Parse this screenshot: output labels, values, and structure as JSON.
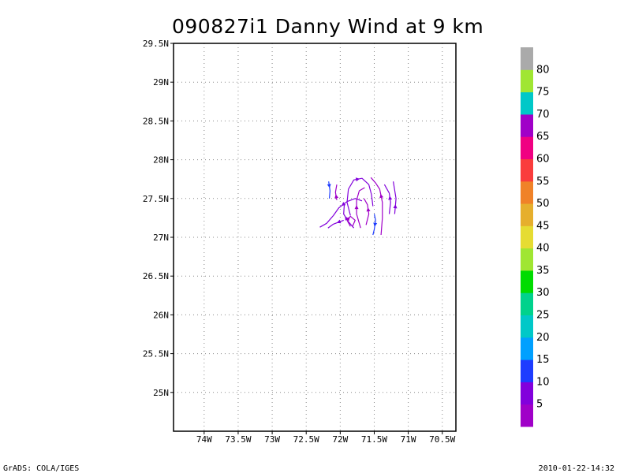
{
  "chart_data": {
    "type": "vector",
    "title": "090827i1 Danny Wind at 9 km",
    "xlim": [
      -74.45,
      -70.3
    ],
    "ylim": [
      24.5,
      29.5
    ],
    "x_ticks": [
      -74,
      -73.5,
      -73,
      -72.5,
      -72,
      -71.5,
      -71,
      -70.5
    ],
    "x_tick_labels": [
      "74W",
      "73.5W",
      "73W",
      "72.5W",
      "72W",
      "71.5W",
      "71W",
      "70.5W"
    ],
    "y_ticks": [
      25,
      25.5,
      26,
      26.5,
      27,
      27.5,
      28,
      28.5,
      29,
      29.5
    ],
    "y_tick_labels": [
      "25N",
      "25.5N",
      "26N",
      "26.5N",
      "27N",
      "27.5N",
      "28N",
      "28.5N",
      "29N",
      "29.5N"
    ],
    "grid": true,
    "legend": "right",
    "colorbar": {
      "labels": [
        "5",
        "10",
        "15",
        "20",
        "25",
        "30",
        "35",
        "40",
        "45",
        "50",
        "55",
        "60",
        "65",
        "70",
        "75",
        "80"
      ],
      "colors": [
        "#a000c8",
        "#8200dc",
        "#1e3cff",
        "#00a0ff",
        "#00c8c8",
        "#00d28c",
        "#00dc00",
        "#a0e632",
        "#e6dc32",
        "#e6af2d",
        "#f08228",
        "#fa3c3c",
        "#f00082",
        "#a000c8",
        "#00c8c8",
        "#a0e632",
        "#aaaaaa"
      ]
    },
    "streamlines": [
      {
        "color": "#1e3cff",
        "points": [
          [
            -72.17,
            27.72
          ],
          [
            -72.15,
            27.6
          ],
          [
            -72.16,
            27.5
          ]
        ]
      },
      {
        "color": "#8200dc",
        "points": [
          [
            -71.68,
            27.47
          ],
          [
            -71.78,
            27.5
          ],
          [
            -71.9,
            27.46
          ],
          [
            -72.02,
            27.38
          ],
          [
            -72.1,
            27.28
          ],
          [
            -72.2,
            27.18
          ],
          [
            -72.3,
            27.13
          ]
        ]
      },
      {
        "color": "#8200dc",
        "points": [
          [
            -71.95,
            27.22
          ],
          [
            -72.1,
            27.17
          ],
          [
            -72.18,
            27.12
          ]
        ]
      },
      {
        "color": "#8200dc",
        "points": [
          [
            -71.8,
            27.12
          ],
          [
            -71.88,
            27.2
          ],
          [
            -71.95,
            27.3
          ],
          [
            -71.94,
            27.42
          ]
        ]
      },
      {
        "color": "#a000c8",
        "points": [
          [
            -71.85,
            27.14
          ],
          [
            -71.9,
            27.22
          ],
          [
            -71.85,
            27.27
          ],
          [
            -71.78,
            27.22
          ],
          [
            -71.82,
            27.14
          ]
        ]
      },
      {
        "color": "#a000c8",
        "points": [
          [
            -72.05,
            27.48
          ],
          [
            -72.07,
            27.58
          ],
          [
            -72.05,
            27.68
          ]
        ]
      },
      {
        "color": "#8200dc",
        "points": [
          [
            -71.85,
            27.28
          ],
          [
            -71.9,
            27.45
          ],
          [
            -71.88,
            27.62
          ],
          [
            -71.8,
            27.74
          ],
          [
            -71.68,
            27.76
          ],
          [
            -71.58,
            27.68
          ],
          [
            -71.54,
            27.55
          ],
          [
            -71.52,
            27.4
          ]
        ]
      },
      {
        "color": "#a000c8",
        "points": [
          [
            -71.7,
            27.12
          ],
          [
            -71.76,
            27.3
          ],
          [
            -71.76,
            27.48
          ],
          [
            -71.72,
            27.6
          ],
          [
            -71.64,
            27.64
          ]
        ]
      },
      {
        "color": "#1e3cff",
        "points": [
          [
            -71.5,
            27.3
          ],
          [
            -71.48,
            27.22
          ],
          [
            -71.5,
            27.1
          ],
          [
            -71.52,
            27.03
          ]
        ]
      },
      {
        "color": "#a000c8",
        "points": [
          [
            -71.4,
            27.03
          ],
          [
            -71.38,
            27.25
          ],
          [
            -71.38,
            27.45
          ],
          [
            -71.42,
            27.62
          ],
          [
            -71.48,
            27.7
          ],
          [
            -71.55,
            27.77
          ]
        ]
      },
      {
        "color": "#8200dc",
        "points": [
          [
            -71.28,
            27.3
          ],
          [
            -71.26,
            27.45
          ],
          [
            -71.28,
            27.57
          ],
          [
            -71.35,
            27.68
          ]
        ]
      },
      {
        "color": "#8200dc",
        "points": [
          [
            -71.2,
            27.3
          ],
          [
            -71.18,
            27.5
          ],
          [
            -71.22,
            27.72
          ]
        ]
      },
      {
        "color": "#a000c8",
        "points": [
          [
            -71.62,
            27.16
          ],
          [
            -71.58,
            27.3
          ],
          [
            -71.6,
            27.42
          ],
          [
            -71.65,
            27.5
          ]
        ]
      }
    ]
  },
  "footer": {
    "left": "GrADS: COLA/IGES",
    "right": "2010-01-22-14:32"
  }
}
